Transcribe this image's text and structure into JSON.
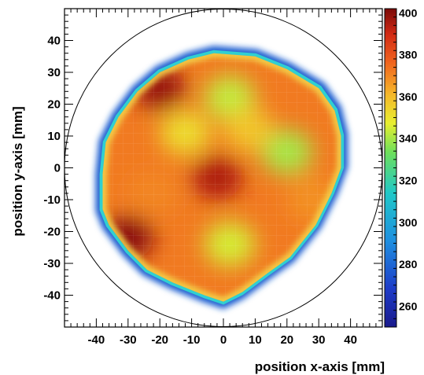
{
  "chart_data": {
    "type": "heatmap",
    "xlabel": "position x-axis [mm]",
    "ylabel": "position y-axis [mm]",
    "xlim": [
      -50,
      50
    ],
    "ylim": [
      -50,
      50
    ],
    "x_ticks": [
      -40,
      -30,
      -20,
      -10,
      0,
      10,
      20,
      30,
      40
    ],
    "y_ticks": [
      -40,
      -30,
      -20,
      -10,
      0,
      10,
      20,
      30,
      40
    ],
    "colorbar": {
      "range": [
        250,
        402
      ],
      "ticks": [
        260,
        280,
        300,
        320,
        340,
        360,
        380,
        400
      ]
    },
    "reference_circle_radius": 50,
    "map_outline": [
      [
        -3,
        36
      ],
      [
        10,
        35
      ],
      [
        20,
        31
      ],
      [
        30,
        25
      ],
      [
        35,
        18
      ],
      [
        37,
        10
      ],
      [
        37,
        0
      ],
      [
        34,
        -8
      ],
      [
        29,
        -18
      ],
      [
        21,
        -28
      ],
      [
        14,
        -33
      ],
      [
        6,
        -39
      ],
      [
        0,
        -42
      ],
      [
        -6,
        -40
      ],
      [
        -16,
        -36
      ],
      [
        -24,
        -32
      ],
      [
        -30,
        -26
      ],
      [
        -36,
        -18
      ],
      [
        -38,
        -13
      ],
      [
        -38,
        -2
      ],
      [
        -37,
        8
      ],
      [
        -33,
        16
      ],
      [
        -27,
        24
      ],
      [
        -20,
        30
      ],
      [
        -11,
        34
      ]
    ],
    "background_level": 372,
    "features": [
      {
        "x": 2,
        "y": 22,
        "level": 343
      },
      {
        "x": 2,
        "y": -24,
        "level": 345
      },
      {
        "x": 20,
        "y": 5,
        "level": 340
      },
      {
        "x": -12,
        "y": 11,
        "level": 352
      },
      {
        "x": 8,
        "y": 12,
        "level": 358
      },
      {
        "x": -2,
        "y": -3,
        "level": 395
      },
      {
        "x": -30,
        "y": -22,
        "level": 400
      },
      {
        "x": -20,
        "y": 25,
        "level": 398
      },
      {
        "x": 28,
        "y": -10,
        "level": 368
      },
      {
        "x": -22,
        "y": -8,
        "level": 370
      }
    ]
  }
}
